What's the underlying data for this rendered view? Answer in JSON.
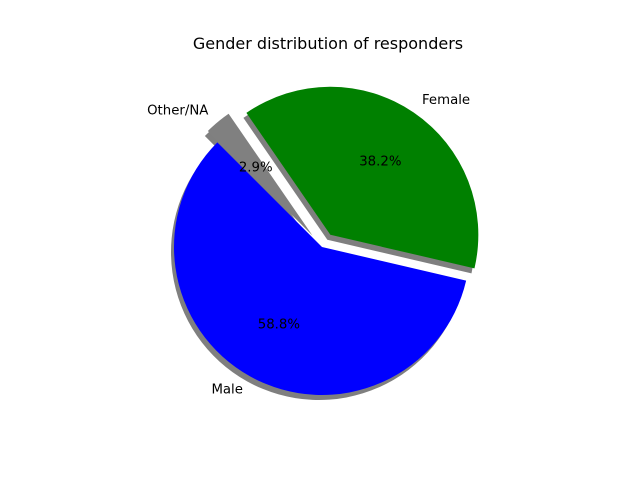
{
  "chart_data": {
    "type": "pie",
    "title": "Gender distribution of responders",
    "shadow": true,
    "start_angle_deg": 135,
    "direction": "counterclockwise",
    "slices": [
      {
        "label": "Male",
        "value": 58.8,
        "pct_text": "58.8%",
        "color": "#0000ff",
        "explode": 0.0
      },
      {
        "label": "Female",
        "value": 38.2,
        "pct_text": "38.2%",
        "color": "#008000",
        "explode": 0.1
      },
      {
        "label": "Other/NA",
        "value": 2.9,
        "pct_text": "2.9%",
        "color": "#808080",
        "explode": 0.1
      }
    ]
  }
}
